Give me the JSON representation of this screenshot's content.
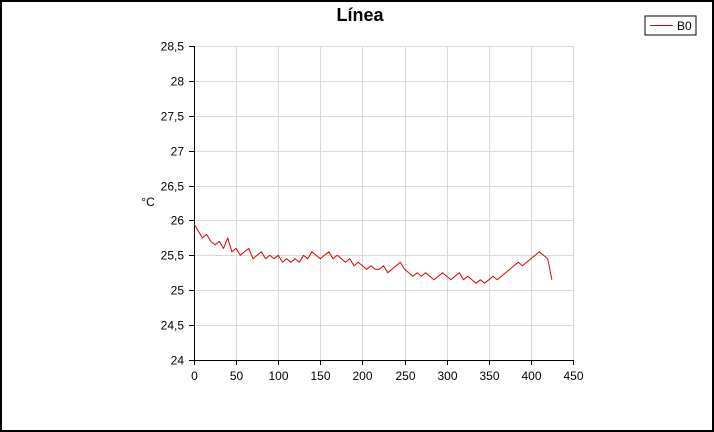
{
  "chart_data": {
    "type": "line",
    "title": "Línea",
    "xlabel": "",
    "ylabel": "°C",
    "xlim": [
      0,
      450
    ],
    "ylim": [
      24,
      28.5
    ],
    "x_ticks": [
      0,
      50,
      100,
      150,
      200,
      250,
      300,
      350,
      400,
      450
    ],
    "x_tick_labels": [
      "0",
      "50",
      "100",
      "150",
      "200",
      "250",
      "300",
      "350",
      "400",
      "450"
    ],
    "y_ticks": [
      24,
      24.5,
      25,
      25.5,
      26,
      26.5,
      27,
      27.5,
      28,
      28.5
    ],
    "y_tick_labels": [
      "24",
      "24,5",
      "25",
      "25,5",
      "26",
      "26,5",
      "27",
      "27,5",
      "28",
      "28,5"
    ],
    "grid": true,
    "legend_position": "top-right",
    "series": [
      {
        "name": "B0",
        "color": "#e00000",
        "x": [
          0,
          5,
          10,
          15,
          20,
          25,
          30,
          35,
          40,
          45,
          50,
          55,
          60,
          65,
          70,
          75,
          80,
          85,
          90,
          95,
          100,
          105,
          110,
          115,
          120,
          125,
          130,
          135,
          140,
          145,
          150,
          155,
          160,
          165,
          170,
          175,
          180,
          185,
          190,
          195,
          200,
          205,
          210,
          215,
          220,
          225,
          230,
          235,
          240,
          245,
          250,
          255,
          260,
          265,
          270,
          275,
          280,
          285,
          290,
          295,
          300,
          305,
          310,
          315,
          320,
          325,
          330,
          335,
          340,
          345,
          350,
          355,
          360,
          365,
          370,
          375,
          380,
          385,
          390,
          395,
          400,
          405,
          410,
          415,
          420,
          425
        ],
        "y": [
          25.95,
          25.85,
          25.75,
          25.8,
          25.7,
          25.65,
          25.7,
          25.6,
          25.75,
          25.55,
          25.6,
          25.5,
          25.55,
          25.6,
          25.45,
          25.5,
          25.55,
          25.45,
          25.5,
          25.45,
          25.5,
          25.4,
          25.45,
          25.4,
          25.45,
          25.4,
          25.5,
          25.45,
          25.55,
          25.5,
          25.45,
          25.5,
          25.55,
          25.45,
          25.5,
          25.45,
          25.4,
          25.45,
          25.35,
          25.4,
          25.35,
          25.3,
          25.35,
          25.3,
          25.3,
          25.35,
          25.25,
          25.3,
          25.35,
          25.4,
          25.3,
          25.25,
          25.2,
          25.25,
          25.2,
          25.25,
          25.2,
          25.15,
          25.2,
          25.25,
          25.2,
          25.15,
          25.2,
          25.25,
          25.15,
          25.2,
          25.15,
          25.1,
          25.15,
          25.1,
          25.15,
          25.2,
          25.15,
          25.2,
          25.25,
          25.3,
          25.35,
          25.4,
          25.35,
          25.4,
          25.45,
          25.5,
          25.55,
          25.5,
          25.45,
          25.15
        ]
      }
    ]
  }
}
